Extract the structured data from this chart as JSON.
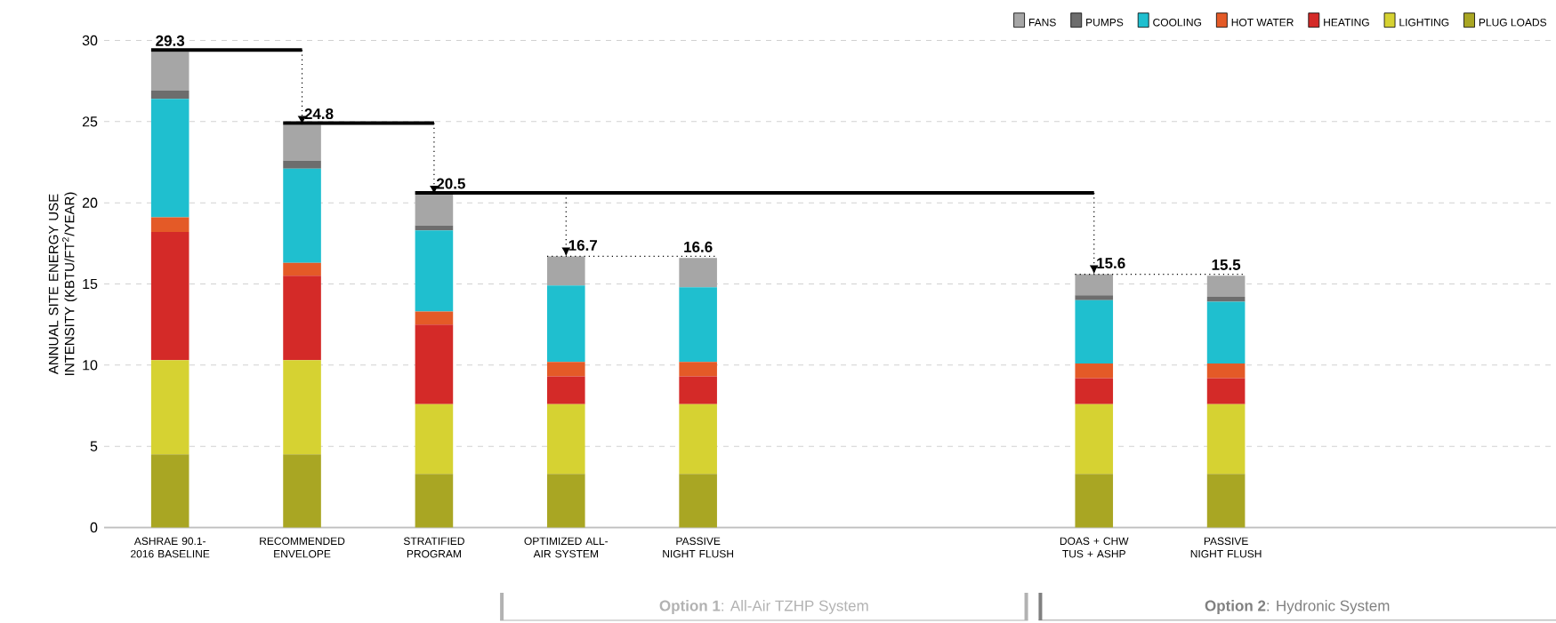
{
  "chart_data": {
    "type": "bar",
    "stacked": true,
    "categories": [
      "ASHRAE 90.1-2016 BASELINE",
      "RECOMMENDED ENVELOPE",
      "STRATIFIED PROGRAM",
      "OPTIMIZED ALL-AIR SYSTEM",
      "PASSIVE NIGHT FLUSH",
      null,
      null,
      "DOAS + CHW TUS + ASHP",
      "PASSIVE NIGHT FLUSH",
      null,
      null
    ],
    "series": [
      {
        "name": "PLUG LOADS",
        "color": "#a9a623",
        "values": [
          4.5,
          4.5,
          3.3,
          3.3,
          3.3,
          null,
          null,
          3.3,
          3.3,
          null,
          null
        ]
      },
      {
        "name": "LIGHTING",
        "color": "#d6d232",
        "values": [
          5.8,
          5.8,
          4.3,
          4.3,
          4.3,
          null,
          null,
          4.3,
          4.3,
          null,
          null
        ]
      },
      {
        "name": "HEATING",
        "color": "#d42a28",
        "values": [
          7.9,
          5.2,
          4.9,
          1.7,
          1.7,
          null,
          null,
          1.6,
          1.6,
          null,
          null
        ]
      },
      {
        "name": "HOT WATER",
        "color": "#e45a27",
        "values": [
          0.9,
          0.8,
          0.8,
          0.9,
          0.9,
          null,
          null,
          0.9,
          0.9,
          null,
          null
        ]
      },
      {
        "name": "COOLING",
        "color": "#1fbfcf",
        "values": [
          7.3,
          5.8,
          5.0,
          4.7,
          4.6,
          null,
          null,
          3.9,
          3.8,
          null,
          null
        ]
      },
      {
        "name": "PUMPS",
        "color": "#6d6d6d",
        "values": [
          0.5,
          0.5,
          0.3,
          0,
          0,
          null,
          null,
          0.3,
          0.3,
          null,
          null
        ]
      },
      {
        "name": "FANS",
        "color": "#a6a6a6",
        "values": [
          2.4,
          2.2,
          1.9,
          1.8,
          1.8,
          null,
          null,
          1.3,
          1.3,
          null,
          null
        ]
      }
    ],
    "totals": [
      "29.3",
      "24.8",
      "20.5",
      "16.7",
      "16.6",
      null,
      null,
      "15.6",
      "15.5",
      null,
      null
    ],
    "ylabel": "ANNUAL SITE ENERGY USE INTENSITY (KBTU/FT$^{2}$/YEAR)",
    "ylim": [
      0,
      30
    ],
    "yticks": [
      0,
      5,
      10,
      15,
      20,
      25,
      30
    ],
    "grid": "y",
    "legend": "top right",
    "ref_lines": [
      {
        "axis": "y",
        "value": 20.5
      }
    ],
    "annotations": [
      "**Option 1**: All-Air TZHP System",
      "**Option 2**: Hydronic System"
    ]
  }
}
